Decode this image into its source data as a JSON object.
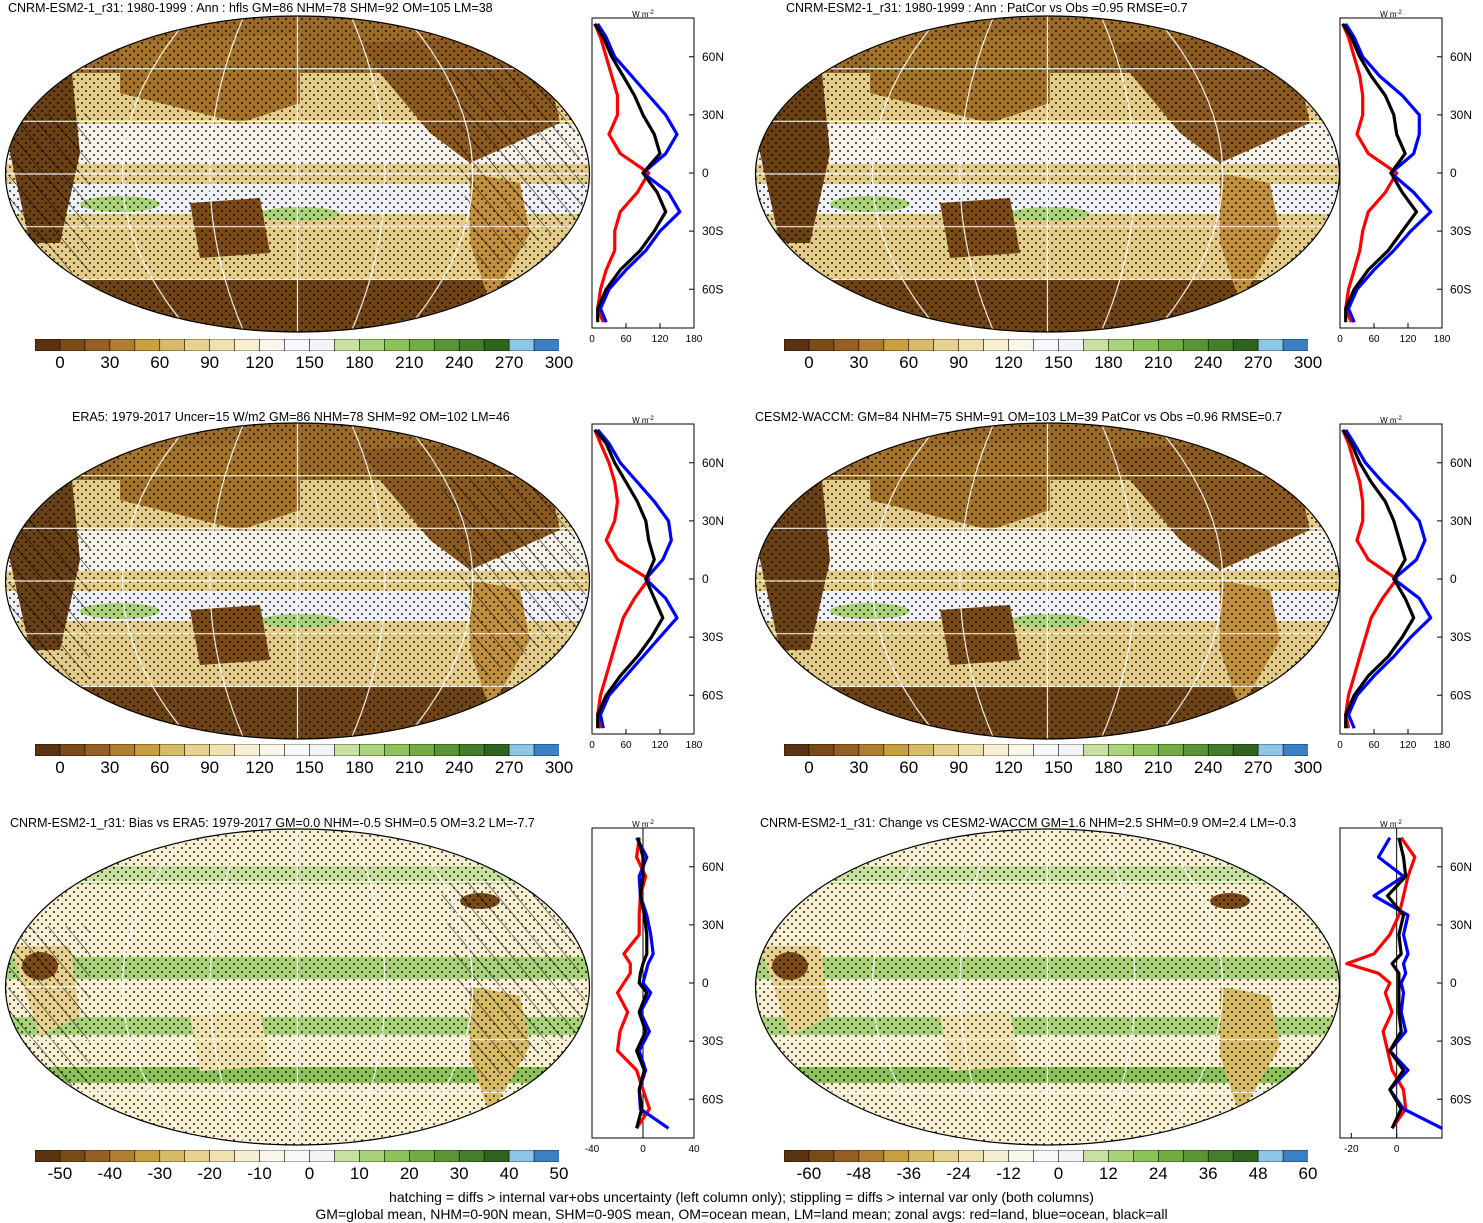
{
  "figure": {
    "footer_line1": "hatching = diffs > internal var+obs uncertainty (left column only); stippling = diffs > internal var only (both columns)",
    "footer_line2": "GM=global mean, NHM=0-90N mean, SHM=0-90S mean, OM=ocean mean, LM=land mean; zonal avgs: red=land, blue=ocean, black=all"
  },
  "colors": {
    "land_line": "#ff0000",
    "ocean_line": "#0000ff",
    "all_line": "#000000",
    "palette": [
      "#5a3310",
      "#7a4a17",
      "#966025",
      "#b07e32",
      "#c9a040",
      "#d8bb66",
      "#e6d18f",
      "#efe2b0",
      "#f6efd1",
      "#f9f6ea",
      "#f7f8fb",
      "#f2f4f8",
      "#c9e0a0",
      "#a9d27a",
      "#8dc15a",
      "#72ac43",
      "#5a9535",
      "#447e2a",
      "#2f6420",
      "#8fc5e6",
      "#3b80c4"
    ]
  },
  "chart_data": [
    {
      "panel": "top-left",
      "type": "heatmap",
      "title": "CNRM-ESM2-1_r31: 1980-1999 : Ann : hfls GM=86 NHM=78 SHM=92 OM=105 LM=38",
      "colorbar_ticks": [
        "0",
        "30",
        "60",
        "90",
        "120",
        "150",
        "180",
        "210",
        "240",
        "270",
        "300"
      ],
      "profile": {
        "unit_label": "W m",
        "unit_sup": "-2",
        "xticks": [
          "0",
          "60",
          "120",
          "180"
        ],
        "xlim": [
          0,
          180
        ],
        "yticks": [
          "60N",
          "30N",
          "0",
          "30S",
          "60S"
        ],
        "ylim": [
          -80,
          80
        ],
        "series": [
          {
            "name": "land",
            "lat": [
              77,
              70,
              60,
              50,
              40,
              30,
              20,
              10,
              0,
              -10,
              -20,
              -30,
              -40,
              -50,
              -60,
              -70,
              -77
            ],
            "values": [
              5,
              15,
              25,
              35,
              45,
              45,
              30,
              50,
              100,
              80,
              50,
              40,
              40,
              25,
              15,
              10,
              20
            ]
          },
          {
            "name": "ocean",
            "lat": [
              77,
              70,
              60,
              50,
              40,
              30,
              20,
              10,
              0,
              -10,
              -20,
              -30,
              -40,
              -50,
              -60,
              -70,
              -77
            ],
            "values": [
              10,
              25,
              40,
              70,
              100,
              130,
              150,
              130,
              90,
              135,
              155,
              120,
              95,
              60,
              30,
              15,
              25
            ]
          },
          {
            "name": "all",
            "lat": [
              77,
              70,
              60,
              50,
              40,
              30,
              20,
              10,
              0,
              -10,
              -20,
              -30,
              -40,
              -50,
              -60,
              -70,
              -77
            ],
            "values": [
              5,
              20,
              35,
              55,
              75,
              90,
              110,
              120,
              90,
              115,
              130,
              110,
              85,
              50,
              25,
              10,
              10
            ]
          }
        ]
      }
    },
    {
      "panel": "top-right",
      "type": "heatmap",
      "title": "CNRM-ESM2-1_r31: 1980-1999 : Ann : PatCor vs Obs =0.95 RMSE=0.7",
      "colorbar_ticks": [
        "0",
        "30",
        "60",
        "90",
        "120",
        "150",
        "180",
        "210",
        "240",
        "270",
        "300"
      ],
      "profile": {
        "unit_label": "W m",
        "unit_sup": "-2",
        "xticks": [
          "0",
          "60",
          "120",
          "180"
        ],
        "xlim": [
          0,
          180
        ],
        "yticks": [
          "60N",
          "30N",
          "0",
          "30S",
          "60S"
        ],
        "ylim": [
          -80,
          80
        ],
        "series": [
          {
            "name": "land",
            "lat": [
              77,
              70,
              60,
              50,
              40,
              30,
              20,
              10,
              0,
              -10,
              -20,
              -30,
              -40,
              -50,
              -60,
              -70,
              -77
            ],
            "values": [
              5,
              15,
              25,
              35,
              40,
              40,
              30,
              50,
              100,
              80,
              50,
              40,
              35,
              25,
              15,
              10,
              20
            ]
          },
          {
            "name": "ocean",
            "lat": [
              77,
              70,
              60,
              50,
              40,
              30,
              20,
              10,
              0,
              -10,
              -20,
              -30,
              -40,
              -50,
              -60,
              -70,
              -77
            ],
            "values": [
              10,
              25,
              40,
              70,
              110,
              140,
              140,
              130,
              90,
              130,
              160,
              125,
              95,
              60,
              30,
              15,
              25
            ]
          },
          {
            "name": "all",
            "lat": [
              77,
              70,
              60,
              50,
              40,
              30,
              20,
              10,
              0,
              -10,
              -20,
              -30,
              -40,
              -50,
              -60,
              -70,
              -77
            ],
            "values": [
              5,
              20,
              35,
              55,
              80,
              95,
              100,
              115,
              90,
              110,
              135,
              110,
              85,
              50,
              25,
              10,
              10
            ]
          }
        ]
      }
    },
    {
      "panel": "middle-left",
      "type": "heatmap",
      "title": "ERA5: 1979-2017 Uncer=15 W/m2 GM=86 NHM=78 SHM=92 OM=102 LM=46",
      "colorbar_ticks": [
        "0",
        "30",
        "60",
        "90",
        "120",
        "150",
        "180",
        "210",
        "240",
        "270",
        "300"
      ],
      "profile": {
        "unit_label": "W m",
        "unit_sup": "-2",
        "xticks": [
          "0",
          "60",
          "120",
          "180"
        ],
        "xlim": [
          0,
          180
        ],
        "yticks": [
          "60N",
          "30N",
          "0",
          "30S",
          "60S"
        ],
        "ylim": [
          -80,
          80
        ],
        "series": [
          {
            "name": "land",
            "lat": [
              77,
              70,
              60,
              50,
              40,
              30,
              20,
              10,
              0,
              -10,
              -20,
              -30,
              -40,
              -50,
              -60,
              -70,
              -77
            ],
            "values": [
              5,
              15,
              30,
              40,
              45,
              40,
              25,
              45,
              100,
              75,
              55,
              45,
              35,
              25,
              15,
              10,
              15
            ]
          },
          {
            "name": "ocean",
            "lat": [
              77,
              70,
              60,
              50,
              40,
              30,
              20,
              10,
              0,
              -10,
              -20,
              -30,
              -40,
              -50,
              -60,
              -70,
              -77
            ],
            "values": [
              10,
              30,
              50,
              80,
              110,
              135,
              140,
              125,
              95,
              130,
              150,
              120,
              90,
              60,
              30,
              15,
              20
            ]
          },
          {
            "name": "all",
            "lat": [
              77,
              70,
              60,
              50,
              40,
              30,
              20,
              10,
              0,
              -10,
              -20,
              -30,
              -40,
              -50,
              -60,
              -70,
              -77
            ],
            "values": [
              5,
              25,
              40,
              60,
              80,
              95,
              100,
              110,
              95,
              110,
              125,
              105,
              80,
              50,
              25,
              10,
              10
            ]
          }
        ]
      }
    },
    {
      "panel": "middle-right",
      "type": "heatmap",
      "title": "CESM2-WACCM: GM=84 NHM=75 SHM=91 OM=103 LM=39 PatCor vs Obs =0.96 RMSE=0.7",
      "colorbar_ticks": [
        "0",
        "30",
        "60",
        "90",
        "120",
        "150",
        "180",
        "210",
        "240",
        "270",
        "300"
      ],
      "profile": {
        "unit_label": "W m",
        "unit_sup": "-2",
        "xticks": [
          "0",
          "60",
          "120",
          "180"
        ],
        "xlim": [
          0,
          180
        ],
        "yticks": [
          "60N",
          "30N",
          "0",
          "30S",
          "60S"
        ],
        "ylim": [
          -80,
          80
        ],
        "series": [
          {
            "name": "land",
            "lat": [
              77,
              70,
              60,
              50,
              40,
              30,
              20,
              10,
              0,
              -10,
              -20,
              -30,
              -40,
              -50,
              -60,
              -70,
              -77
            ],
            "values": [
              5,
              15,
              25,
              35,
              40,
              40,
              30,
              50,
              100,
              75,
              55,
              45,
              35,
              25,
              15,
              10,
              15
            ]
          },
          {
            "name": "ocean",
            "lat": [
              77,
              70,
              60,
              50,
              40,
              30,
              20,
              10,
              0,
              -10,
              -20,
              -30,
              -40,
              -50,
              -60,
              -70,
              -77
            ],
            "values": [
              10,
              25,
              45,
              75,
              110,
              140,
              150,
              135,
              95,
              140,
              160,
              125,
              95,
              60,
              30,
              15,
              25
            ]
          },
          {
            "name": "all",
            "lat": [
              77,
              70,
              60,
              50,
              40,
              30,
              20,
              10,
              0,
              -10,
              -20,
              -30,
              -40,
              -50,
              -60,
              -70,
              -77
            ],
            "values": [
              5,
              20,
              35,
              55,
              80,
              95,
              105,
              115,
              95,
              115,
              130,
              110,
              85,
              50,
              25,
              10,
              10
            ]
          }
        ]
      }
    },
    {
      "panel": "bottom-left",
      "type": "heatmap",
      "title": "CNRM-ESM2-1_r31: Bias vs ERA5: 1979-2017 GM=0.0 NHM=-0.5 SHM=0.5 OM=3.2 LM=-7.7",
      "colorbar_ticks": [
        "-50",
        "-40",
        "-30",
        "-20",
        "-10",
        "0",
        "10",
        "20",
        "30",
        "40",
        "50"
      ],
      "profile": {
        "unit_label": "W m",
        "unit_sup": "-2",
        "xticks": [
          "-40",
          "0",
          "40"
        ],
        "xlim": [
          -40,
          40
        ],
        "yticks": [
          "60N",
          "30N",
          "0",
          "30S",
          "60S"
        ],
        "ylim": [
          -80,
          80
        ],
        "series": [
          {
            "name": "land",
            "lat": [
              75,
              65,
              55,
              45,
              35,
              25,
              15,
              10,
              5,
              0,
              -5,
              -15,
              -25,
              -35,
              -45,
              -55,
              -65,
              -75
            ],
            "values": [
              -3,
              -5,
              2,
              -2,
              -3,
              -3,
              -15,
              -10,
              -10,
              -15,
              -20,
              -12,
              -18,
              -20,
              -5,
              0,
              5,
              -5
            ]
          },
          {
            "name": "ocean",
            "lat": [
              75,
              65,
              55,
              45,
              35,
              25,
              15,
              10,
              5,
              0,
              -5,
              -15,
              -25,
              -35,
              -45,
              -55,
              -65,
              -75
            ],
            "values": [
              -5,
              3,
              -3,
              -2,
              3,
              6,
              8,
              4,
              2,
              0,
              6,
              -2,
              5,
              -3,
              2,
              -3,
              -2,
              20
            ]
          },
          {
            "name": "all",
            "lat": [
              75,
              65,
              55,
              45,
              35,
              25,
              15,
              10,
              5,
              0,
              -5,
              -15,
              -25,
              -35,
              -45,
              -55,
              -65,
              -75
            ],
            "values": [
              -4,
              0,
              0,
              -2,
              1,
              3,
              3,
              0,
              -2,
              -3,
              3,
              -3,
              2,
              -5,
              1,
              -3,
              -1,
              -5
            ]
          }
        ]
      }
    },
    {
      "panel": "bottom-right",
      "type": "heatmap",
      "title": "CNRM-ESM2-1_r31: Change vs CESM2-WACCM GM=1.6 NHM=2.5 SHM=0.9 OM=2.4 LM=-0.3",
      "colorbar_ticks": [
        "-60",
        "-48",
        "-36",
        "-24",
        "-12",
        "0",
        "12",
        "24",
        "36",
        "48",
        "60"
      ],
      "profile": {
        "unit_label": "W m",
        "unit_sup": "-2",
        "xticks": [
          "-20",
          "0"
        ],
        "xlim": [
          -25,
          20
        ],
        "yticks": [
          "60N",
          "30N",
          "0",
          "30S",
          "60S"
        ],
        "ylim": [
          -80,
          80
        ],
        "series": [
          {
            "name": "land",
            "lat": [
              75,
              65,
              55,
              45,
              35,
              25,
              15,
              10,
              5,
              0,
              -5,
              -15,
              -25,
              -35,
              -45,
              -55,
              -65,
              -75
            ],
            "values": [
              2,
              8,
              5,
              3,
              1,
              -3,
              -10,
              -22,
              -8,
              -3,
              -5,
              -2,
              -6,
              -4,
              -2,
              3,
              4,
              -2
            ]
          },
          {
            "name": "ocean",
            "lat": [
              75,
              65,
              55,
              45,
              35,
              25,
              15,
              10,
              5,
              0,
              -5,
              -15,
              -25,
              -35,
              -45,
              -55,
              -65,
              -75
            ],
            "values": [
              -3,
              -8,
              3,
              -10,
              5,
              3,
              5,
              3,
              4,
              2,
              3,
              2,
              4,
              -3,
              5,
              -3,
              3,
              20
            ]
          },
          {
            "name": "all",
            "lat": [
              75,
              65,
              55,
              45,
              35,
              25,
              15,
              10,
              5,
              0,
              -5,
              -15,
              -25,
              -35,
              -45,
              -55,
              -65,
              -75
            ],
            "values": [
              1,
              3,
              4,
              -4,
              3,
              1,
              2,
              -2,
              1,
              1,
              1,
              1,
              2,
              -3,
              3,
              -3,
              2,
              -2
            ]
          }
        ]
      }
    }
  ]
}
